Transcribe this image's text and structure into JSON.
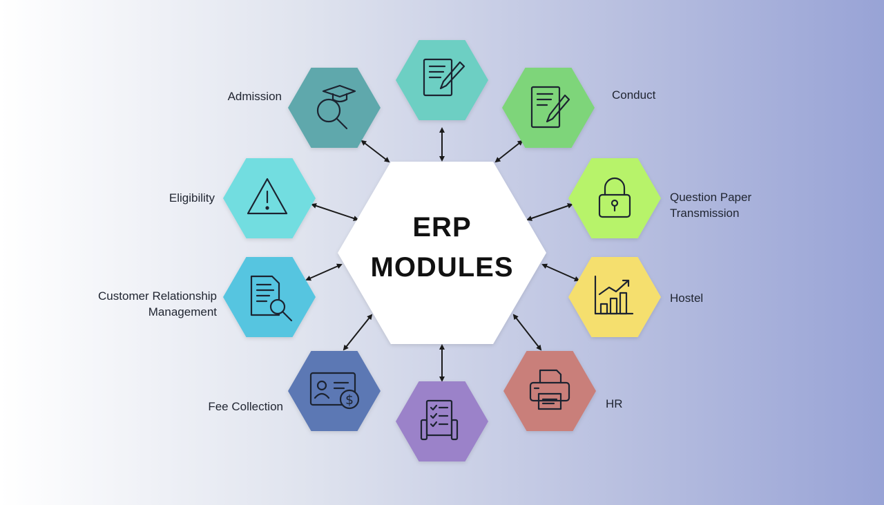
{
  "center": {
    "line1": "ERP",
    "line2": "MODULES",
    "fill": "#ffffff"
  },
  "modules": [
    {
      "id": "top",
      "label": "",
      "color": "#6dcfc3",
      "icon": "document-pencil-icon"
    },
    {
      "id": "conduct",
      "label": "Conduct",
      "color": "#7ed57a",
      "icon": "document-pencil-icon"
    },
    {
      "id": "qpt",
      "label": "Question Paper Transmission",
      "color": "#b7f36a",
      "icon": "padlock-icon"
    },
    {
      "id": "hostel",
      "label": "Hostel",
      "color": "#f5df6e",
      "icon": "growth-chart-icon"
    },
    {
      "id": "hr",
      "label": "HR",
      "color": "#c97f7a",
      "icon": "printer-icon"
    },
    {
      "id": "bottom",
      "label": "",
      "color": "#9b82c9",
      "icon": "checklist-icon"
    },
    {
      "id": "fee",
      "label": "Fee Collection",
      "color": "#5c78b4",
      "icon": "id-card-dollar-icon"
    },
    {
      "id": "crm",
      "label": "Customer Relationship Management",
      "color": "#56c5e0",
      "icon": "document-search-icon"
    },
    {
      "id": "eligibility",
      "label": "Eligibility",
      "color": "#72dde0",
      "icon": "warning-icon"
    },
    {
      "id": "admission",
      "label": "Admission",
      "color": "#5fa8ac",
      "icon": "graduation-search-icon"
    }
  ],
  "labels": {
    "admission": "Admission",
    "eligibility": "Eligibility",
    "crm_line1": "Customer Relationship",
    "crm_line2": "Management",
    "fee": "Fee Collection",
    "conduct": "Conduct",
    "qpt_line1": "Question Paper",
    "qpt_line2": "Transmission",
    "hostel": "Hostel",
    "hr": "HR"
  }
}
